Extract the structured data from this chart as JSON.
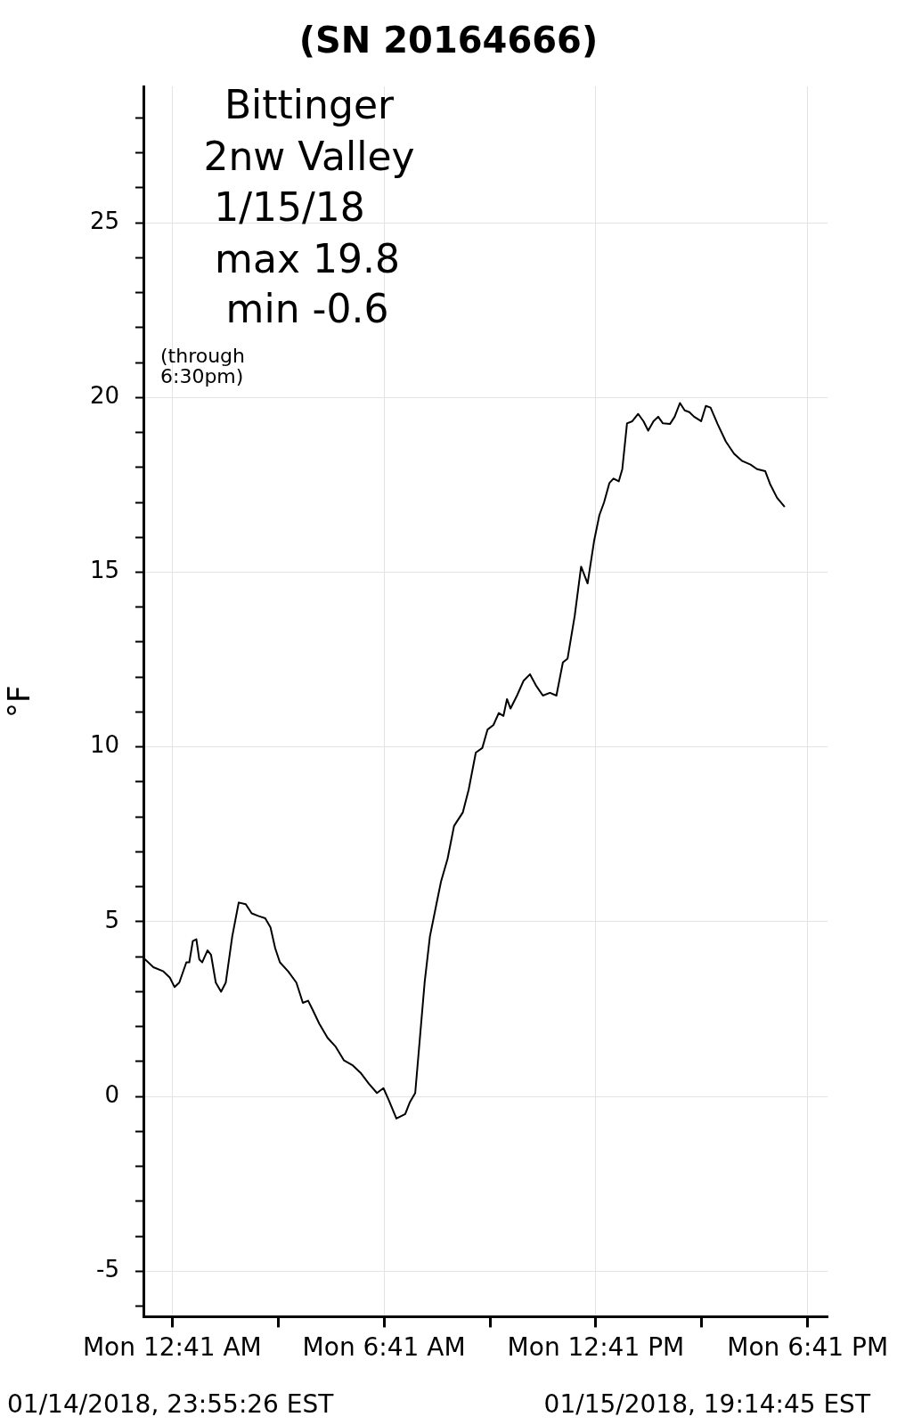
{
  "chart_data": {
    "type": "line",
    "title": "(SN 20164666)",
    "ylabel": "°F",
    "annotations": [
      "Bittinger",
      "2nw Valley",
      "1/15/18",
      "max 19.8",
      "min -0.6",
      "(through 6:30pm)",
      "01/14/2018, 23:55:26 EST",
      "01/15/2018, 19:14:45 EST"
    ],
    "xlim": [
      "2018-01-14T23:52",
      "2018-01-15T19:15"
    ],
    "xticks": [
      {
        "value": "2018-01-15T00:41",
        "label": "Mon 12:41 AM"
      },
      {
        "value": "2018-01-15T03:41",
        "label": null
      },
      {
        "value": "2018-01-15T06:41",
        "label": "Mon 6:41 AM"
      },
      {
        "value": "2018-01-15T09:41",
        "label": null
      },
      {
        "value": "2018-01-15T12:41",
        "label": "Mon 12:41 PM"
      },
      {
        "value": "2018-01-15T15:41",
        "label": null
      },
      {
        "value": "2018-01-15T18:41",
        "label": "Mon 6:41 PM"
      }
    ],
    "ylim": [
      -6.3,
      28.9
    ],
    "yticks": [
      {
        "value": -6,
        "label": null
      },
      -5,
      {
        "value": -4,
        "label": null
      },
      {
        "value": -3,
        "label": null
      },
      {
        "value": -2,
        "label": null
      },
      {
        "value": -1,
        "label": null
      },
      0,
      {
        "value": 1,
        "label": null
      },
      {
        "value": 2,
        "label": null
      },
      {
        "value": 3,
        "label": null
      },
      {
        "value": 4,
        "label": null
      },
      5,
      {
        "value": 6,
        "label": null
      },
      {
        "value": 7,
        "label": null
      },
      {
        "value": 8,
        "label": null
      },
      {
        "value": 9,
        "label": null
      },
      10,
      {
        "value": 11,
        "label": null
      },
      {
        "value": 12,
        "label": null
      },
      {
        "value": 13,
        "label": null
      },
      {
        "value": 14,
        "label": null
      },
      15,
      {
        "value": 16,
        "label": null
      },
      {
        "value": 17,
        "label": null
      },
      {
        "value": 18,
        "label": null
      },
      {
        "value": 19,
        "label": null
      },
      20,
      {
        "value": 21,
        "label": null
      },
      {
        "value": 22,
        "label": null
      },
      {
        "value": 23,
        "label": null
      },
      {
        "value": 24,
        "label": null
      },
      25,
      {
        "value": 26,
        "label": null
      },
      {
        "value": 27,
        "label": null
      },
      {
        "value": 28,
        "label": null
      }
    ],
    "grid": true,
    "series": [
      {
        "color": "#000000",
        "x": [
          "2018-01-14T23:52",
          "2018-01-15T00:09",
          "2018-01-15T00:26",
          "2018-01-15T00:37",
          "2018-01-15T00:45",
          "2018-01-15T00:53",
          "2018-01-15T01:05",
          "2018-01-15T01:10",
          "2018-01-15T01:16",
          "2018-01-15T01:22",
          "2018-01-15T01:27",
          "2018-01-15T01:32",
          "2018-01-15T01:41",
          "2018-01-15T01:47",
          "2018-01-15T01:55",
          "2018-01-15T02:04",
          "2018-01-15T02:12",
          "2018-01-15T02:23",
          "2018-01-15T02:34",
          "2018-01-15T02:46",
          "2018-01-15T02:56",
          "2018-01-15T03:08",
          "2018-01-15T03:19",
          "2018-01-15T03:28",
          "2018-01-15T03:36",
          "2018-01-15T03:44",
          "2018-01-15T03:58",
          "2018-01-15T04:12",
          "2018-01-15T04:23",
          "2018-01-15T04:32",
          "2018-01-15T04:40",
          "2018-01-15T04:51",
          "2018-01-15T05:05",
          "2018-01-15T05:19",
          "2018-01-15T05:33",
          "2018-01-15T05:47",
          "2018-01-15T06:01",
          "2018-01-15T06:15",
          "2018-01-15T06:29",
          "2018-01-15T06:40",
          "2018-01-15T06:49",
          "2018-01-15T07:02",
          "2018-01-15T07:17",
          "2018-01-15T07:25",
          "2018-01-15T07:34",
          "2018-01-15T07:42",
          "2018-01-15T07:50",
          "2018-01-15T07:59",
          "2018-01-15T08:10",
          "2018-01-15T08:18",
          "2018-01-15T08:29",
          "2018-01-15T08:40",
          "2018-01-15T08:55",
          "2018-01-15T09:05",
          "2018-01-15T09:17",
          "2018-01-15T09:28",
          "2018-01-15T09:37",
          "2018-01-15T09:47",
          "2018-01-15T09:56",
          "2018-01-15T10:04",
          "2018-01-15T10:10",
          "2018-01-15T10:16",
          "2018-01-15T10:27",
          "2018-01-15T10:38",
          "2018-01-15T10:49",
          "2018-01-15T11:00",
          "2018-01-15T11:11",
          "2018-01-15T11:23",
          "2018-01-15T11:34",
          "2018-01-15T11:45",
          "2018-01-15T11:53",
          "2018-01-15T12:05",
          "2018-01-15T12:16",
          "2018-01-15T12:27",
          "2018-01-15T12:38",
          "2018-01-15T12:47",
          "2018-01-15T12:55",
          "2018-01-15T13:04",
          "2018-01-15T13:11",
          "2018-01-15T13:20",
          "2018-01-15T13:26",
          "2018-01-15T13:34",
          "2018-01-15T13:43",
          "2018-01-15T13:53",
          "2018-01-15T14:02",
          "2018-01-15T14:10",
          "2018-01-15T14:19",
          "2018-01-15T14:27",
          "2018-01-15T14:35",
          "2018-01-15T14:47",
          "2018-01-15T14:55",
          "2018-01-15T15:04",
          "2018-01-15T15:12",
          "2018-01-15T15:20",
          "2018-01-15T15:28",
          "2018-01-15T15:40",
          "2018-01-15T15:48",
          "2018-01-15T15:56",
          "2018-01-15T16:08",
          "2018-01-15T16:22",
          "2018-01-15T16:36",
          "2018-01-15T16:50",
          "2018-01-15T17:04",
          "2018-01-15T17:15",
          "2018-01-15T17:29",
          "2018-01-15T17:37",
          "2018-01-15T17:49",
          "2018-01-15T18:02"
        ],
        "values": [
          3.97,
          3.7,
          3.58,
          3.4,
          3.13,
          3.26,
          3.84,
          3.84,
          4.45,
          4.5,
          3.92,
          3.84,
          4.18,
          4.05,
          3.26,
          3.0,
          3.26,
          4.58,
          5.55,
          5.5,
          5.24,
          5.16,
          5.1,
          4.84,
          4.24,
          3.84,
          3.58,
          3.26,
          2.68,
          2.74,
          2.47,
          2.08,
          1.68,
          1.42,
          1.03,
          0.9,
          0.68,
          0.37,
          0.1,
          0.24,
          -0.1,
          -0.63,
          -0.5,
          -0.16,
          0.1,
          1.68,
          3.26,
          4.58,
          5.5,
          6.16,
          6.8,
          7.74,
          8.13,
          8.79,
          9.84,
          9.97,
          10.5,
          10.63,
          10.97,
          10.89,
          11.37,
          11.1,
          11.47,
          11.89,
          12.08,
          11.74,
          11.47,
          11.55,
          11.47,
          12.42,
          12.53,
          13.74,
          15.16,
          14.68,
          15.89,
          16.63,
          17.0,
          17.55,
          17.68,
          17.6,
          17.95,
          19.26,
          19.32,
          19.53,
          19.32,
          19.05,
          19.32,
          19.45,
          19.26,
          19.24,
          19.45,
          19.84,
          19.63,
          19.58,
          19.45,
          19.32,
          19.76,
          19.71,
          19.24,
          18.74,
          18.39,
          18.18,
          18.08,
          17.95,
          17.89,
          17.53,
          17.13,
          16.87
        ]
      }
    ]
  }
}
